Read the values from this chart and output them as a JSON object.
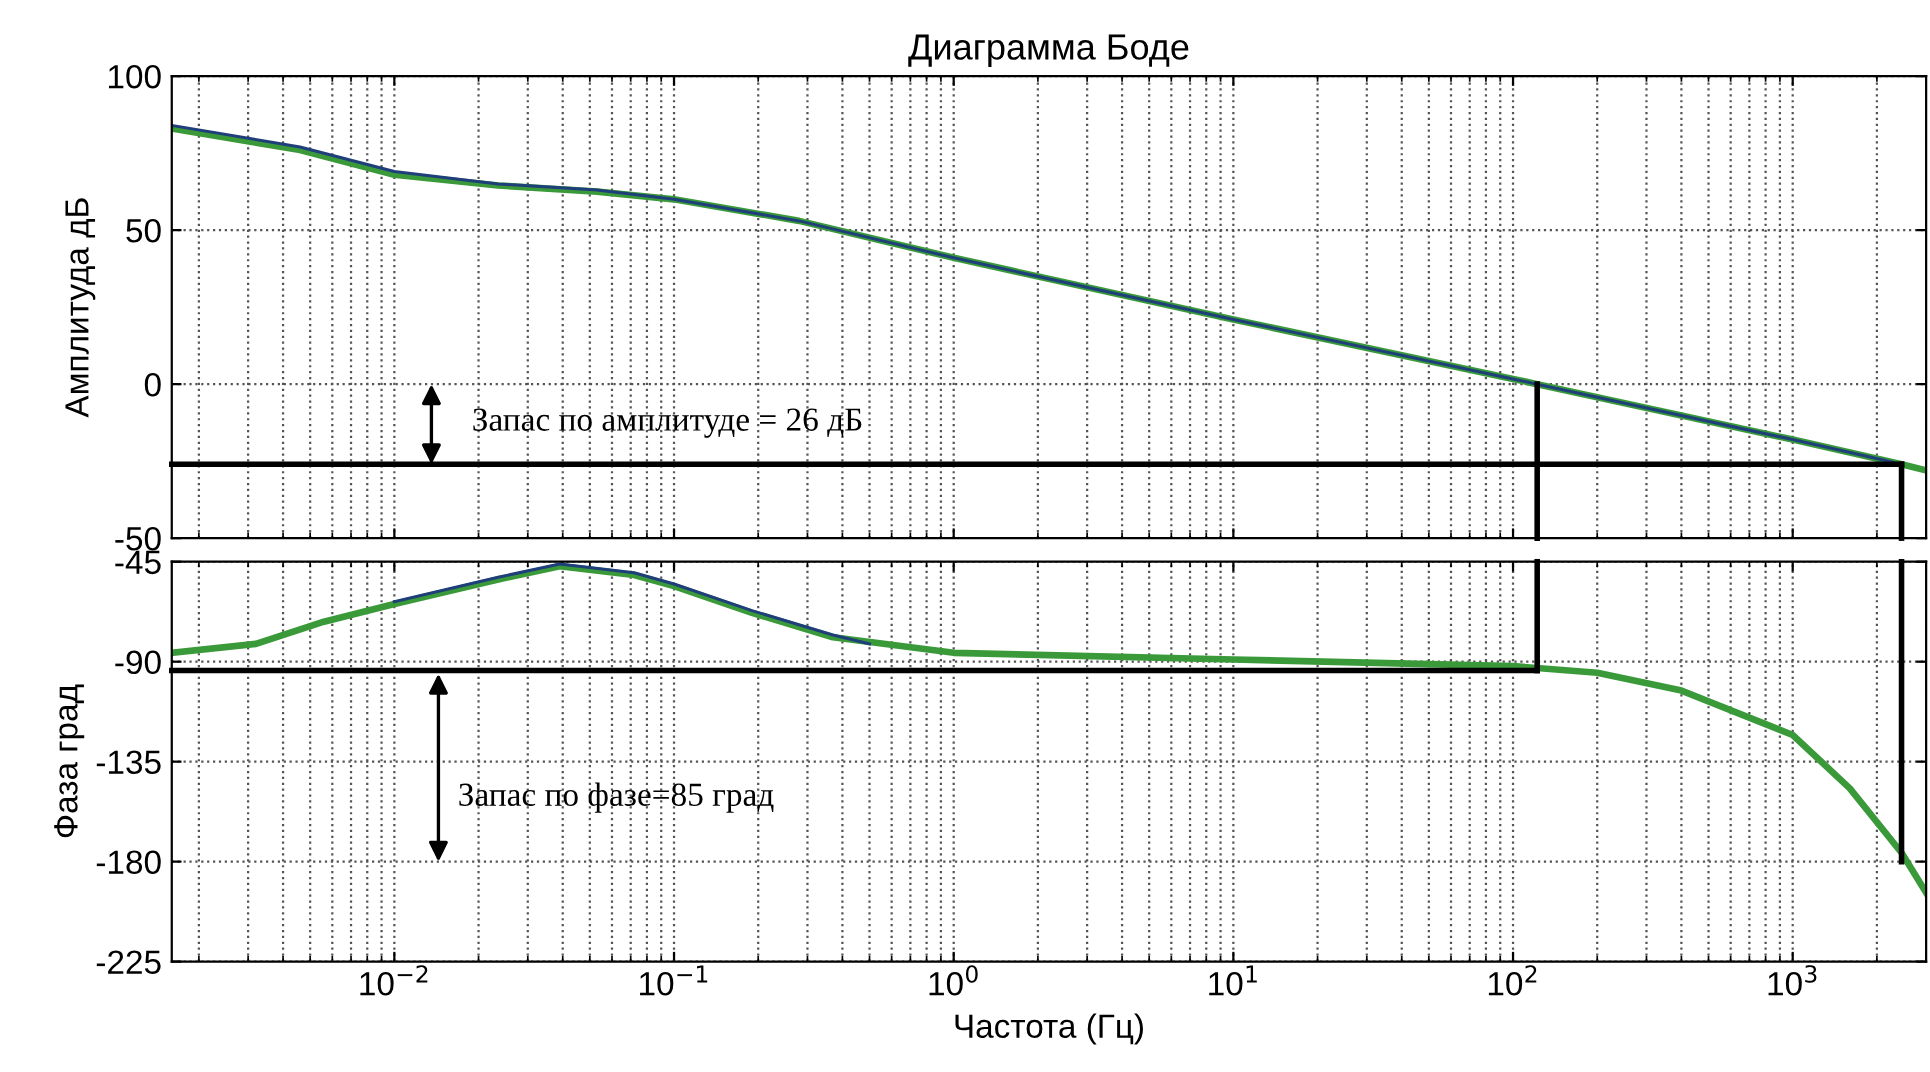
{
  "chart_data": [
    {
      "type": "line",
      "title": "Диаграмма Боде",
      "ylabel": "Амплитуда дБ",
      "log": "x",
      "grid": true,
      "tick_labels": "y",
      "marker": "none",
      "line_style": "solid",
      "xlim": [
        0.0016,
        3000
      ],
      "ylim": [
        -50,
        100
      ],
      "yticks": [
        -50,
        0,
        50,
        100
      ],
      "xticks": [
        {
          "value": 0.01,
          "label": null
        },
        {
          "value": 0.1,
          "label": null
        },
        {
          "value": 1,
          "label": null
        },
        {
          "value": 10,
          "label": null
        },
        {
          "value": 100,
          "label": null
        },
        {
          "value": 1000,
          "label": null
        }
      ],
      "series": [
        {
          "color": "#3a9a3a",
          "x": [
            0.0016,
            0.0046,
            0.01,
            0.0235,
            0.053,
            0.1,
            0.28,
            1,
            10,
            100,
            122,
            1000,
            2450,
            3000
          ],
          "values": [
            83,
            76,
            68,
            64.5,
            62.5,
            60,
            53,
            41,
            21,
            1.7,
            0,
            -18,
            -26,
            -28
          ]
        },
        {
          "color": "#1f3f7a",
          "x": [
            0.0016,
            0.0046,
            0.01,
            0.0235,
            0.053,
            0.1,
            0.28,
            1,
            10,
            100,
            122,
            1000,
            2450
          ],
          "values": [
            84,
            77,
            69,
            65,
            63,
            60,
            53,
            41,
            21,
            1.7,
            0,
            -18,
            -26
          ]
        },
        {
          "color": "#000000",
          "x": [
            0.0016,
            2450
          ],
          "values": [
            -26,
            -26
          ]
        },
        {
          "color": "#000000",
          "x": [
            122,
            122
          ],
          "values": [
            0,
            -50
          ]
        },
        {
          "color": "#000000",
          "x": [
            2450,
            2450
          ],
          "values": [
            -26,
            -50
          ]
        }
      ],
      "annotations": [
        "Запас по амплитуде = 26 дБ"
      ]
    },
    {
      "type": "line",
      "xlabel": "Частота (Гц)",
      "ylabel": "Фаза град",
      "log": "x",
      "grid": true,
      "marker": "none",
      "line_style": "solid",
      "xlim": [
        0.0016,
        3000
      ],
      "ylim": [
        -225,
        -45
      ],
      "yticks": [
        -225,
        -180,
        -135,
        -90,
        -45
      ],
      "xticks": [
        {
          "value": 0.01,
          "label": "10$^{−2}$"
        },
        {
          "value": 0.1,
          "label": "10$^{−1}$"
        },
        {
          "value": 1,
          "label": "10$^{0}$"
        },
        {
          "value": 10,
          "label": "10$^{1}$"
        },
        {
          "value": 100,
          "label": "10$^{2}$"
        },
        {
          "value": 1000,
          "label": "10$^{3}$"
        }
      ],
      "series": [
        {
          "color": "#3a9a3a",
          "x": [
            0.0016,
            0.0032,
            0.0056,
            0.01,
            0.0235,
            0.039,
            0.072,
            0.1,
            0.19,
            0.37,
            1,
            10,
            100,
            200,
            400,
            1000,
            1600,
            2450,
            3000
          ],
          "values": [
            -86,
            -82,
            -72,
            -64,
            -53,
            -47,
            -51,
            -56,
            -68,
            -79,
            -86,
            -89,
            -92,
            -95,
            -103,
            -123,
            -147,
            -176,
            -194
          ]
        },
        {
          "color": "#1f3f7a",
          "x": [
            0.01,
            0.0235,
            0.039,
            0.072,
            0.1,
            0.19,
            0.37,
            0.5
          ],
          "values": [
            -63,
            -52,
            -46,
            -50,
            -55,
            -67,
            -78,
            -82
          ]
        },
        {
          "color": "#000000",
          "x": [
            0.0016,
            122
          ],
          "values": [
            -94,
            -94
          ]
        },
        {
          "color": "#000000",
          "x": [
            122,
            122
          ],
          "values": [
            -45,
            -94
          ]
        },
        {
          "color": "#000000",
          "x": [
            2450,
            2450
          ],
          "values": [
            -45,
            -180
          ]
        }
      ],
      "annotations": [
        "Запас по фазе=85 град"
      ]
    }
  ]
}
